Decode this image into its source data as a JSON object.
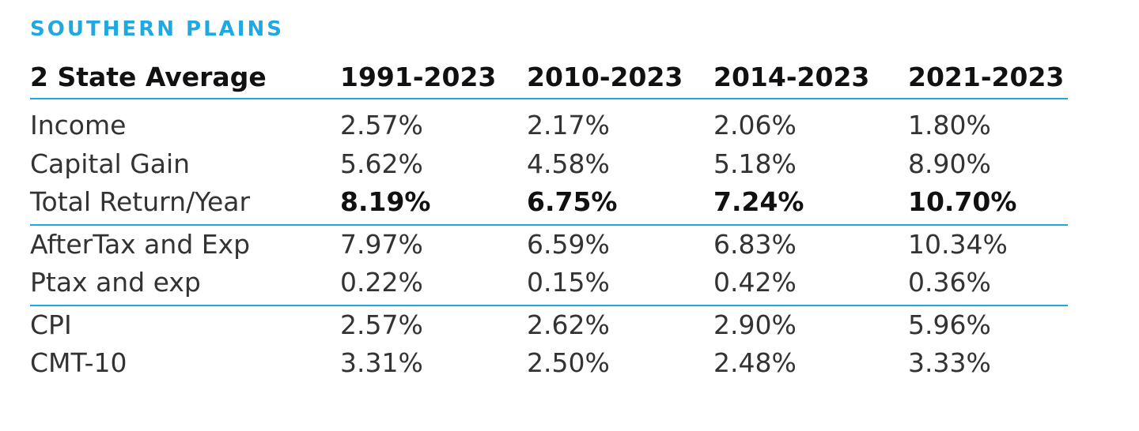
{
  "region": "SOUTHERN PLAINS",
  "header": [
    "2 State Average",
    "1991-2023",
    "2010-2023",
    "2014-2023",
    "2021-2023"
  ],
  "groups": [
    [
      {
        "label": "Income",
        "values": [
          "2.57%",
          "2.17%",
          "2.06%",
          "1.80%"
        ]
      },
      {
        "label": "Capital Gain",
        "values": [
          "5.62%",
          "4.58%",
          "5.18%",
          "8.90%"
        ]
      },
      {
        "label": "Total Return/Year",
        "values": [
          "8.19%",
          "6.75%",
          "7.24%",
          "10.70%"
        ]
      }
    ],
    [
      {
        "label": "AfterTax and Exp",
        "values": [
          "7.97%",
          "6.59%",
          "6.83%",
          "10.34%"
        ]
      },
      {
        "label": "Ptax and exp",
        "values": [
          "0.22%",
          "0.15%",
          "0.42%",
          "0.36%"
        ]
      }
    ],
    [
      {
        "label": "CPI",
        "values": [
          "2.57%",
          "2.62%",
          "2.90%",
          "5.96%"
        ]
      },
      {
        "label": "CMT-10",
        "values": [
          "3.31%",
          "2.50%",
          "2.48%",
          "3.33%"
        ]
      }
    ]
  ],
  "colors": {
    "accent": "#1fa9e1",
    "text": "#333333"
  }
}
